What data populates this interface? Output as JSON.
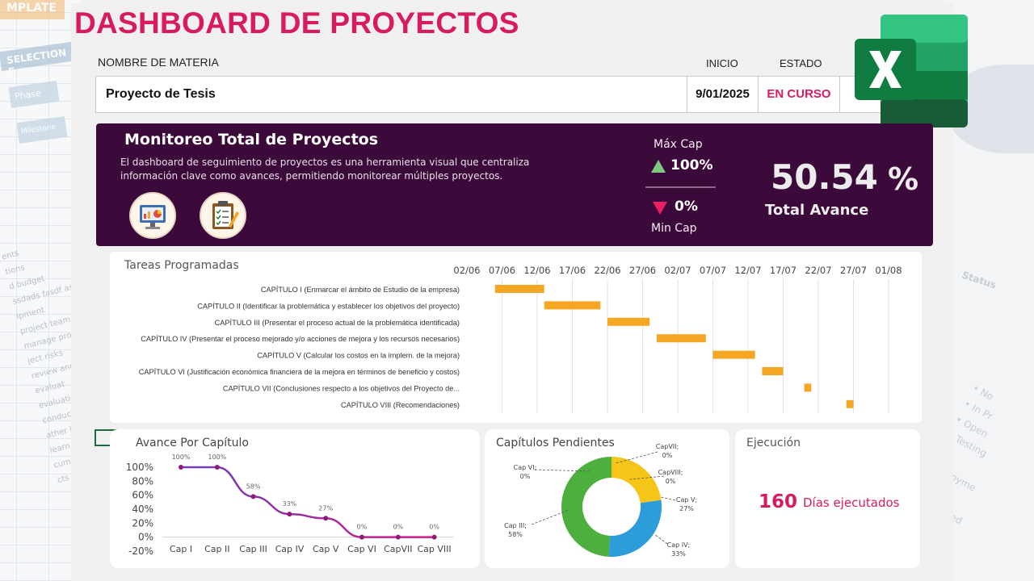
{
  "header": {
    "title": "DASHBOARD DE PROYECTOS",
    "col_name_label": "NOMBRE DE MATERIA",
    "col_start_label": "INICIO",
    "col_status_label": "ESTADO",
    "project_name": "Proyecto de Tesis",
    "start_date": "9/01/2025",
    "status": "EN CURSO"
  },
  "banner": {
    "title": "Monitoreo Total de Proyectos",
    "description": "El dashboard de seguimiento de proyectos es una herramienta visual que centraliza información clave como avances, permitiendo monitorear múltiples proyectos.",
    "max_label": "Máx Cap",
    "max_value": "100%",
    "min_value": "0%",
    "min_label": "Min Cap",
    "total_value": "50.54",
    "total_unit": "%",
    "total_label": "Total Avance"
  },
  "gantt": {
    "title": "Tareas Programadas",
    "dates": [
      "02/06",
      "07/06",
      "12/06",
      "17/06",
      "22/06",
      "27/06",
      "02/07",
      "07/07",
      "12/07",
      "17/07",
      "22/07",
      "27/07",
      "01/08"
    ],
    "tasks": [
      {
        "label": "CAPÍTULO I (Enmarcar el ámbito de Estudio de la empresa)",
        "start": "06/06",
        "end": "13/06"
      },
      {
        "label": "CAPÍTULO II (Identificar la problemática y establecer los objetivos del proyecto)",
        "start": "13/06",
        "end": "21/06"
      },
      {
        "label": "CAPÍTULO III (Presentar el proceso actual de la problemática identificada)",
        "start": "22/06",
        "end": "28/06"
      },
      {
        "label": "CAPÍTULO IV (Presentar el proceso mejorado y/o acciones de mejora y los recursos necesarios)",
        "start": "29/06",
        "end": "06/07"
      },
      {
        "label": "CAPÍTULO V (Calcular los costos en la implem. de la mejora)",
        "start": "07/07",
        "end": "13/07"
      },
      {
        "label": "CAPÍTULO VI (Justificación económica financiera de la mejora en términos de beneficio y costos)",
        "start": "14/07",
        "end": "17/07"
      },
      {
        "label": "CAPÍTULO VII (Conclusiones respecto a los objetivos del Proyecto de...",
        "start": "20/07",
        "end": "21/07"
      },
      {
        "label": "CAPÍTULO VIII (Recomendaciones)",
        "start": "26/07",
        "end": "27/07"
      }
    ]
  },
  "avance": {
    "title": "Avance Por Capítulo"
  },
  "pendientes": {
    "title": "Capítulos Pendientes"
  },
  "ejecucion": {
    "title": "Ejecución",
    "days": "160",
    "days_label": "Días ejecutados"
  },
  "colors": {
    "accent": "#d81b60",
    "banner": "#3c0a3a",
    "gantt_bar": "#f5a623"
  },
  "chart_data": [
    {
      "type": "line",
      "title": "Avance Por Capítulo",
      "categories": [
        "Cap I",
        "Cap II",
        "Cap III",
        "Cap IV",
        "Cap V",
        "Cap VI",
        "CapVII",
        "Cap VIII"
      ],
      "values": [
        100,
        100,
        58,
        33,
        27,
        0,
        0,
        0
      ],
      "value_labels": [
        "100%",
        "100%",
        "58%",
        "33%",
        "27%",
        "0%",
        "0%",
        "0%"
      ],
      "yticks": [
        "100%",
        "80%",
        "60%",
        "40%",
        "20%",
        "0%",
        "-20%"
      ],
      "ylim": [
        -20,
        100
      ]
    },
    {
      "type": "pie",
      "title": "Capítulos Pendientes",
      "slices": [
        {
          "label": "CapVII;\n0%",
          "value": 0,
          "color": "#f5c518"
        },
        {
          "label": "CapVIII;\n0%",
          "value": 0,
          "color": "#f5c518"
        },
        {
          "label": "Cap V;\n27%",
          "value": 27,
          "color": "#f5c518"
        },
        {
          "label": "Cap IV;\n33%",
          "value": 33,
          "color": "#2d9cdb"
        },
        {
          "label": "Cap III;\n58%",
          "value": 58,
          "color": "#4caf3e"
        },
        {
          "label": "Cap VI;\n0%",
          "value": 0,
          "color": "#4caf3e"
        }
      ]
    }
  ]
}
